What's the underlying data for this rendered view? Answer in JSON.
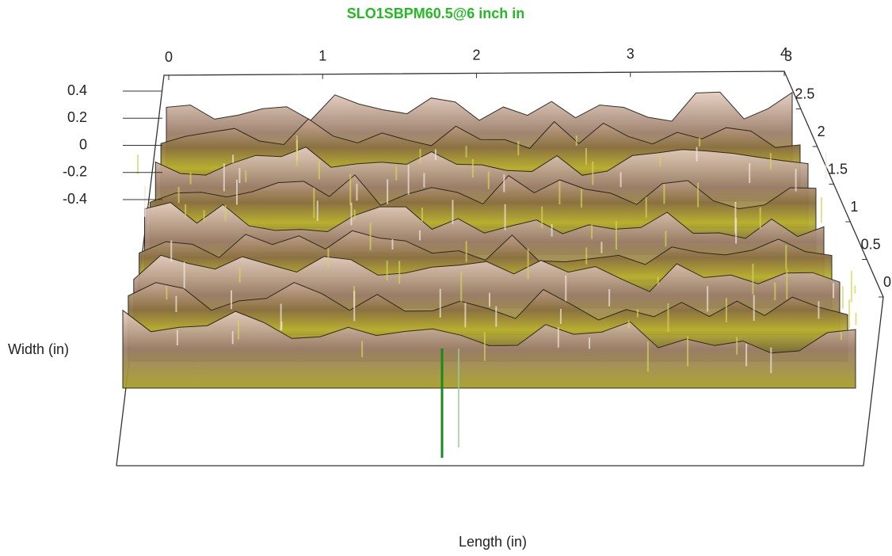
{
  "chart_data": {
    "type": "surface3d",
    "title": "SLO1SBPM60.5@6 inch in",
    "x_label": "Length (in)",
    "y_label": "Width (in)",
    "xlim": [
      0,
      4
    ],
    "xticks": [
      0,
      1,
      2,
      3,
      4
    ],
    "ylim": [
      0,
      3
    ],
    "yticks": [
      0,
      0.5,
      1,
      1.5,
      2,
      2.5,
      3
    ],
    "zlim": [
      -0.4,
      0.4
    ],
    "zticks": [
      0.4,
      0.2,
      0,
      -0.2,
      -0.4
    ],
    "title_color": "#22bb22"
  }
}
